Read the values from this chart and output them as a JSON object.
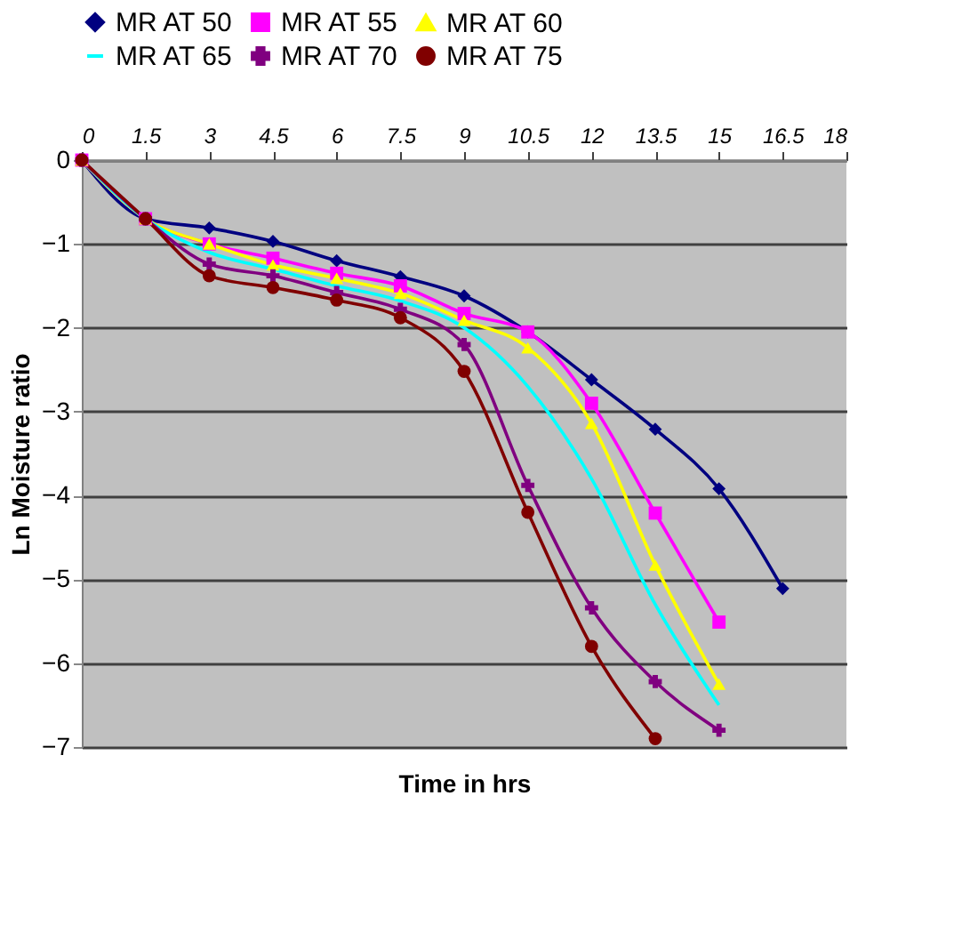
{
  "chart_data": {
    "type": "line",
    "xlabel": "Time in hrs",
    "ylabel": "Ln Moisture ratio",
    "x": [
      0,
      1.5,
      3,
      4.5,
      6,
      7.5,
      9,
      10.5,
      12,
      13.5,
      15,
      16.5
    ],
    "xlim": [
      0,
      18
    ],
    "xticks": [
      0,
      1.5,
      3,
      4.5,
      6,
      7.5,
      9,
      10.5,
      12,
      13.5,
      15,
      16.5,
      18
    ],
    "ylim": [
      -7,
      0
    ],
    "yticks": [
      -7,
      -6,
      -5,
      -4,
      -3,
      -2,
      -1,
      0
    ],
    "grid": "y",
    "legend": "top",
    "series": [
      {
        "name": "MR AT 50",
        "color": "#000080",
        "marker": "diamond",
        "values": [
          0,
          -0.7,
          -0.81,
          -0.97,
          -1.2,
          -1.39,
          -1.62,
          -2.05,
          -2.62,
          -3.21,
          -3.92,
          -5.11
        ]
      },
      {
        "name": "MR AT 55",
        "color": "#ff00ff",
        "marker": "square",
        "values": [
          0,
          -0.7,
          -1.0,
          -1.17,
          -1.35,
          -1.5,
          -1.83,
          -2.05,
          -2.9,
          -4.21,
          -5.51,
          null
        ]
      },
      {
        "name": "MR AT 60",
        "color": "#ffff00",
        "marker": "triangle",
        "values": [
          0,
          -0.7,
          -1.0,
          -1.25,
          -1.41,
          -1.59,
          -1.91,
          -2.24,
          -3.14,
          -4.83,
          -6.25,
          null
        ]
      },
      {
        "name": "MR AT 65",
        "color": "#00ffff",
        "marker": "none",
        "values": [
          0,
          -0.7,
          -1.1,
          -1.3,
          -1.5,
          -1.68,
          -2.0,
          -2.7,
          -3.8,
          -5.3,
          -6.5,
          null
        ]
      },
      {
        "name": "MR AT 70",
        "color": "#800080",
        "marker": "cross",
        "values": [
          0,
          -0.7,
          -1.24,
          -1.38,
          -1.58,
          -1.78,
          -2.2,
          -3.88,
          -5.34,
          -6.22,
          -6.8,
          null
        ]
      },
      {
        "name": "MR AT 75",
        "color": "#800000",
        "marker": "circle",
        "values": [
          0,
          -0.7,
          -1.38,
          -1.52,
          -1.67,
          -1.88,
          -2.52,
          -4.2,
          -5.8,
          -6.9,
          null,
          null
        ]
      }
    ]
  }
}
